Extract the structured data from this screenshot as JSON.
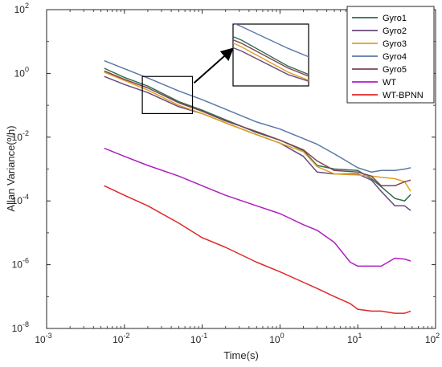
{
  "chart_data": {
    "type": "line",
    "title": "",
    "xlabel": "Time(s)",
    "ylabel": "Allan Variance(º/h)",
    "xscale": "log",
    "yscale": "log",
    "xlim": [
      0.001,
      100
    ],
    "ylim": [
      1e-08,
      100
    ],
    "x_ticks": [
      {
        "value": 0.001,
        "base": "10",
        "exp": "-3"
      },
      {
        "value": 0.01,
        "base": "10",
        "exp": "-2"
      },
      {
        "value": 0.1,
        "base": "10",
        "exp": "-1"
      },
      {
        "value": 1,
        "base": "10",
        "exp": "0"
      },
      {
        "value": 10,
        "base": "10",
        "exp": "1"
      },
      {
        "value": 100,
        "base": "10",
        "exp": "2"
      }
    ],
    "y_ticks": [
      {
        "value": 1e-08,
        "base": "10",
        "exp": "-8"
      },
      {
        "value": 1e-06,
        "base": "10",
        "exp": "-6"
      },
      {
        "value": 0.0001,
        "base": "10",
        "exp": "-4"
      },
      {
        "value": 0.01,
        "base": "10",
        "exp": "-2"
      },
      {
        "value": 1,
        "base": "10",
        "exp": "0"
      },
      {
        "value": 100,
        "base": "10",
        "exp": "2"
      }
    ],
    "grid": false,
    "legend_position": "top-right",
    "series": [
      {
        "name": "Gyro1",
        "color": "#2f6b4f",
        "x": [
          0.0055,
          0.01,
          0.02,
          0.05,
          0.1,
          0.2,
          0.5,
          1,
          2,
          3,
          5,
          10,
          15,
          20,
          30,
          40,
          48
        ],
        "y": [
          1.45,
          0.75,
          0.4,
          0.13,
          0.07,
          0.035,
          0.014,
          0.008,
          0.0038,
          0.0013,
          0.001,
          0.0009,
          0.0005,
          0.00028,
          0.00012,
          0.0001,
          0.00016
        ]
      },
      {
        "name": "Gyro2",
        "color": "#6a4a7c",
        "x": [
          0.0055,
          0.01,
          0.02,
          0.05,
          0.1,
          0.2,
          0.5,
          1,
          2,
          3,
          5,
          10,
          15,
          20,
          30,
          40,
          48
        ],
        "y": [
          0.8,
          0.45,
          0.25,
          0.09,
          0.055,
          0.028,
          0.012,
          0.0065,
          0.0025,
          0.0008,
          0.0007,
          0.0007,
          0.00045,
          0.0002,
          7e-05,
          7e-05,
          5e-05
        ]
      },
      {
        "name": "Gyro3",
        "color": "#e0a020",
        "x": [
          0.0055,
          0.01,
          0.02,
          0.05,
          0.1,
          0.2,
          0.5,
          1,
          2,
          3,
          5,
          10,
          15,
          20,
          30,
          40,
          48
        ],
        "y": [
          1.1,
          0.6,
          0.3,
          0.1,
          0.055,
          0.028,
          0.012,
          0.0065,
          0.0035,
          0.0012,
          0.0007,
          0.00065,
          0.0006,
          0.00055,
          0.0005,
          0.0004,
          0.0002
        ]
      },
      {
        "name": "Gyro4",
        "color": "#5b78a8",
        "x": [
          0.0055,
          0.01,
          0.02,
          0.05,
          0.1,
          0.2,
          0.5,
          1,
          2,
          3,
          5,
          10,
          15,
          20,
          30,
          40,
          48
        ],
        "y": [
          2.5,
          1.4,
          0.72,
          0.28,
          0.15,
          0.075,
          0.03,
          0.018,
          0.009,
          0.006,
          0.003,
          0.0011,
          0.0008,
          0.0009,
          0.0009,
          0.001,
          0.0011
        ]
      },
      {
        "name": "Gyro5",
        "color": "#7a4455",
        "x": [
          0.0055,
          0.01,
          0.02,
          0.05,
          0.1,
          0.2,
          0.5,
          1,
          2,
          3,
          5,
          10,
          15,
          20,
          30,
          40,
          48
        ],
        "y": [
          1.2,
          0.65,
          0.35,
          0.12,
          0.065,
          0.032,
          0.015,
          0.008,
          0.004,
          0.0018,
          0.0009,
          0.0008,
          0.0006,
          0.0003,
          0.0003,
          0.0004,
          0.00045
        ]
      },
      {
        "name": "WT",
        "color": "#b01ec0",
        "x": [
          0.0055,
          0.01,
          0.02,
          0.05,
          0.1,
          0.2,
          0.5,
          1,
          2,
          3,
          5,
          8,
          10,
          15,
          20,
          30,
          40,
          48
        ],
        "y": [
          0.0045,
          0.0025,
          0.0013,
          0.0006,
          0.0003,
          0.00015,
          7e-05,
          4e-05,
          1.8e-05,
          1.2e-05,
          5e-06,
          1.2e-06,
          9e-07,
          9e-07,
          9e-07,
          1.6e-06,
          1.5e-06,
          1.3e-06
        ]
      },
      {
        "name": "WT-BPNN",
        "color": "#e02828",
        "x": [
          0.0055,
          0.01,
          0.02,
          0.05,
          0.1,
          0.2,
          0.5,
          1,
          2,
          3,
          5,
          8,
          10,
          15,
          20,
          30,
          40,
          48
        ],
        "y": [
          0.0003,
          0.00015,
          7e-05,
          2e-05,
          7e-06,
          3.5e-06,
          1.2e-06,
          6e-07,
          2.8e-07,
          1.8e-07,
          1e-07,
          6e-08,
          4e-08,
          3.5e-08,
          3.5e-08,
          3e-08,
          3e-08,
          3.5e-08
        ]
      }
    ],
    "inset": {
      "zoom_box": {
        "xlim": [
          0.017,
          0.075
        ],
        "ylim": [
          0.055,
          0.8
        ]
      },
      "arrow": true
    }
  }
}
